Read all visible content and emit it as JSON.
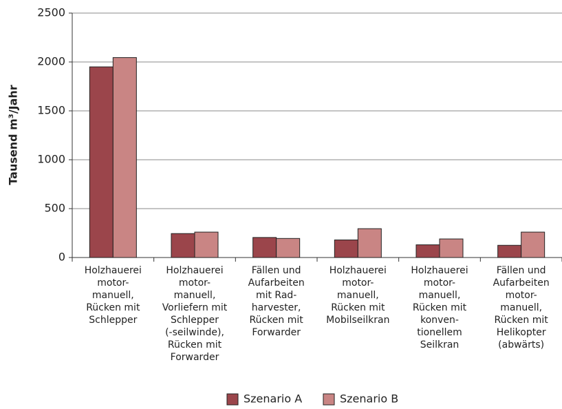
{
  "chart_data": {
    "type": "bar",
    "y_label": "Tausend m³/Jahr",
    "categories": [
      "Holzhauerei\nmotor-\nmanuell,\nRücken mit\nSchlepper",
      "Holzhauerei\nmotor-\nmanuell,\nVorliefern mit\nSchlepper\n(-seilwinde),\nRücken mit\nForwarder",
      "Fällen und\nAufarbeiten\nmit Rad-\nharvester,\nRücken mit\nForwarder",
      "Holzhauerei\nmotor-\nmanuell,\nRücken mit\nMobilseilkran",
      "Holzhauerei\nmotor-\nmanuell,\nRücken mit\nkonven-\ntionellem\nSeilkran",
      "Fällen und\nAufarbeiten\nmotor-\nmanuell,\nRücken mit\nHelikopter\n(abwärts)"
    ],
    "series": [
      {
        "name": "Szenario A",
        "color": "#9b454b",
        "values": [
          1950,
          245,
          205,
          180,
          130,
          125
        ]
      },
      {
        "name": "Szenario B",
        "color": "#c98584",
        "values": [
          2045,
          260,
          195,
          295,
          190,
          260
        ]
      }
    ],
    "ylim": [
      0,
      2500
    ],
    "yticks": [
      0,
      500,
      1000,
      1500,
      2000,
      2500
    ],
    "grid": true,
    "legend": "bottom"
  }
}
